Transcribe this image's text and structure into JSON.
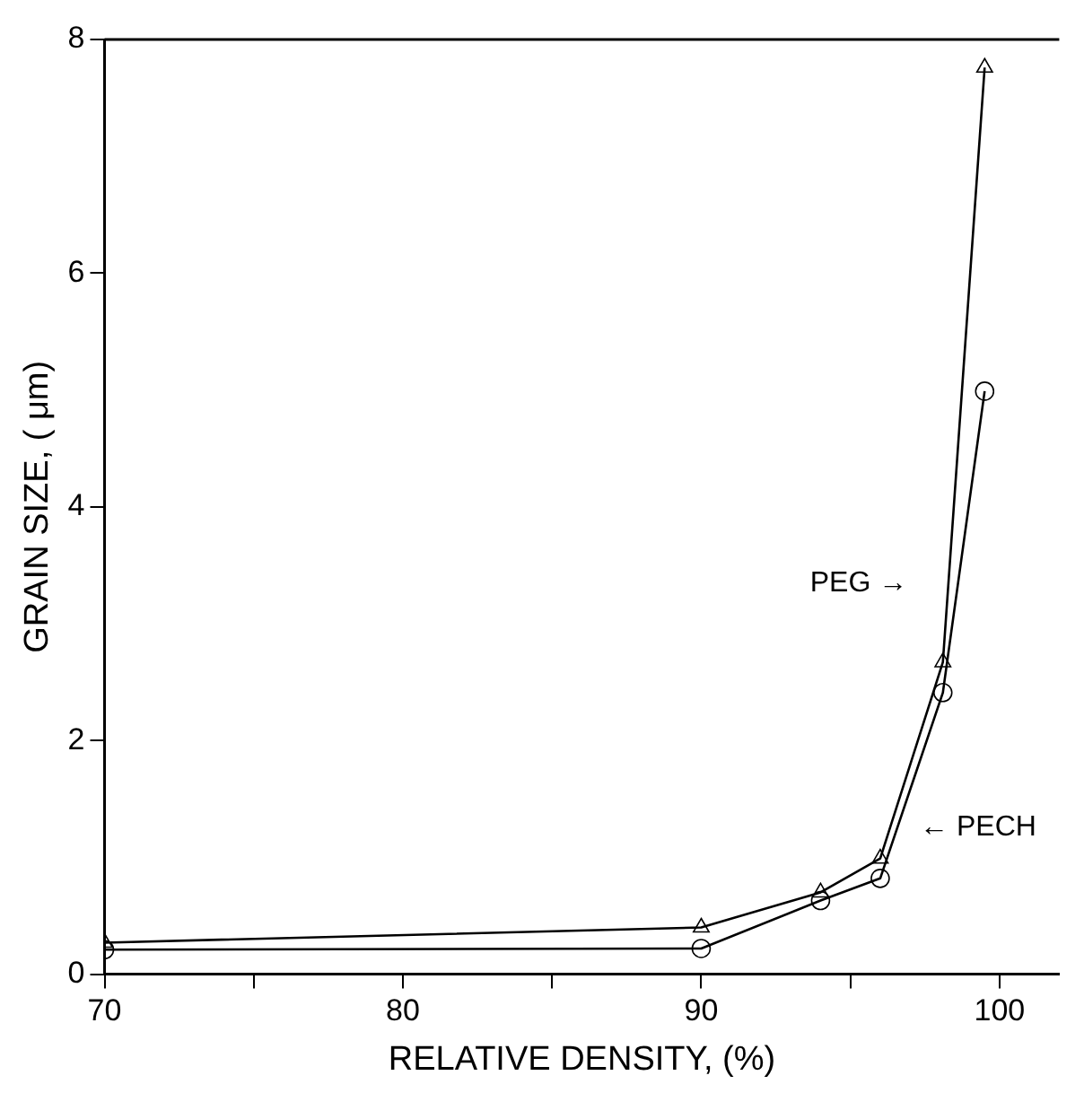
{
  "chart_data": {
    "type": "line",
    "xlabel": "RELATIVE DENSITY, (%)",
    "ylabel": "GRAIN SIZE, ( μm)",
    "xlim": [
      70,
      102
    ],
    "xticks": [
      70,
      {
        "value": 75,
        "label": null
      },
      80,
      {
        "value": 85,
        "label": null
      },
      90,
      {
        "value": 95,
        "label": null
      },
      100
    ],
    "ylim": [
      0,
      8
    ],
    "yticks": [
      0,
      2,
      4,
      6,
      8
    ],
    "grid": false,
    "legend": false,
    "series": [
      {
        "color": "#000000",
        "marker": "triangle",
        "x": [
          70,
          90,
          94,
          96,
          98.1,
          99.5
        ],
        "values": [
          0.27,
          0.4,
          0.7,
          0.99,
          2.67,
          7.76
        ]
      },
      {
        "color": "#000000",
        "marker": "circle",
        "x": [
          70,
          90,
          94,
          96,
          98.1,
          99.5
        ],
        "values": [
          0.21,
          0.22,
          0.63,
          0.82,
          2.41,
          4.99
        ]
      }
    ],
    "annotations": [
      "PEG →",
      "← PECH"
    ]
  }
}
